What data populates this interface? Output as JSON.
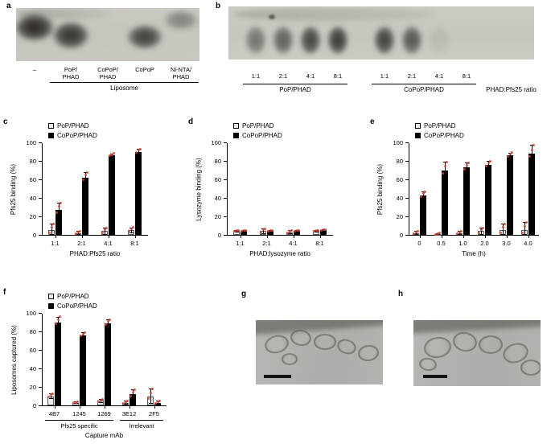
{
  "point_color": "#d9453a",
  "bar_colors": {
    "pop": "#ebebeb",
    "copop": "#000000"
  },
  "panels": {
    "a": {
      "letter": "a",
      "lanes": [
        "–",
        "PoP/\nPHAD",
        "CoPoP/\nPHAD",
        "CoPoP",
        "Ni-NTA/\nPHAD"
      ],
      "group_label": "Liposome",
      "band_intensity": [
        0.95,
        0.88,
        0,
        0.8,
        0.4
      ]
    },
    "b": {
      "letter": "b",
      "lanes": [
        "1:1",
        "2:1",
        "4:1",
        "8:1",
        "1:1",
        "2:1",
        "4:1",
        "8:1"
      ],
      "group_labels": [
        "PoP/PHAD",
        "CoPoP/PHAD"
      ],
      "axis_label": "PHAD:Pfs25 ratio",
      "band_intensity": [
        0.5,
        0.62,
        0.78,
        0.85,
        0.8,
        0.68,
        0.07,
        0
      ]
    },
    "c": {
      "letter": "c"
    },
    "d": {
      "letter": "d"
    },
    "e": {
      "letter": "e"
    },
    "f": {
      "letter": "f"
    },
    "g": {
      "letter": "g",
      "scale_bar": true
    },
    "h": {
      "letter": "h",
      "scale_bar": true
    }
  },
  "chart_data": [
    {
      "id": "c",
      "type": "bar",
      "categories": [
        "1:1",
        "2:1",
        "4:1",
        "8:1"
      ],
      "series": [
        {
          "name": "PoP/PHAD",
          "color": "#ebebeb",
          "values": [
            5,
            2,
            4,
            5
          ],
          "errors": [
            7,
            2,
            4,
            3
          ]
        },
        {
          "name": "CoPoP/PHAD",
          "color": "#000000",
          "values": [
            27,
            62,
            86,
            90
          ],
          "errors": [
            8,
            6,
            2,
            3
          ]
        }
      ],
      "xlabel": "PHAD:Pfs25 ratio",
      "ylabel": "Pfs25 binding (%)",
      "ylim": [
        0,
        100
      ],
      "yticks": [
        0,
        20,
        40,
        60,
        80,
        100
      ],
      "legend_position": "top-left",
      "grid": false
    },
    {
      "id": "d",
      "type": "bar",
      "categories": [
        "1:1",
        "2:1",
        "4:1",
        "8:1"
      ],
      "series": [
        {
          "name": "PoP/PHAD",
          "color": "#ebebeb",
          "values": [
            4,
            4,
            3,
            4
          ],
          "errors": [
            1,
            3,
            2,
            1
          ]
        },
        {
          "name": "CoPoP/PHAD",
          "color": "#000000",
          "values": [
            4,
            4,
            4,
            5
          ],
          "errors": [
            1,
            1,
            1,
            1
          ]
        }
      ],
      "xlabel": "PHAD:lysozyme ratio",
      "ylabel": "Lysozyme binding (%)",
      "ylim": [
        0,
        100
      ],
      "yticks": [
        0,
        20,
        40,
        60,
        80,
        100
      ],
      "legend_position": "top-left",
      "grid": false
    },
    {
      "id": "e",
      "type": "bar",
      "categories": [
        "0",
        "0.5",
        "1.0",
        "2.0",
        "3.0",
        "4.0"
      ],
      "series": [
        {
          "name": "PoP/PHAD",
          "color": "#ebebeb",
          "values": [
            2,
            1,
            2,
            4,
            5,
            5
          ],
          "errors": [
            2,
            1,
            2,
            4,
            7,
            9
          ]
        },
        {
          "name": "CoPoP/PHAD",
          "color": "#000000",
          "values": [
            43,
            70,
            73,
            76,
            86,
            88
          ],
          "errors": [
            4,
            9,
            5,
            4,
            3,
            9
          ]
        }
      ],
      "xlabel": "Time (h)",
      "ylabel": "Pfs25 binding (%)",
      "ylim": [
        0,
        100
      ],
      "yticks": [
        0,
        20,
        40,
        60,
        80,
        100
      ],
      "legend_position": "top-left",
      "grid": false
    },
    {
      "id": "f",
      "type": "bar",
      "categories": [
        "4B7",
        "1245",
        "1269",
        "3E12",
        "2F5"
      ],
      "series": [
        {
          "name": "PoP/PHAD",
          "color": "#ebebeb",
          "values": [
            10,
            3,
            5,
            3,
            10
          ],
          "errors": [
            3,
            1,
            2,
            2,
            8
          ]
        },
        {
          "name": "CoPoP/PHAD",
          "color": "#000000",
          "values": [
            90,
            76,
            89,
            12,
            3
          ],
          "errors": [
            6,
            3,
            4,
            5,
            2
          ]
        }
      ],
      "xlabel": "Capture mAb",
      "ylabel": "Liposomes captured (%)",
      "ylim": [
        0,
        100
      ],
      "yticks": [
        0,
        20,
        40,
        60,
        80,
        100
      ],
      "legend_position": "top-left",
      "grid": false,
      "groups": [
        {
          "label": "Pfs25 specific",
          "from": 0,
          "to": 2
        },
        {
          "label": "Irrelevant",
          "from": 3,
          "to": 4
        }
      ]
    }
  ]
}
